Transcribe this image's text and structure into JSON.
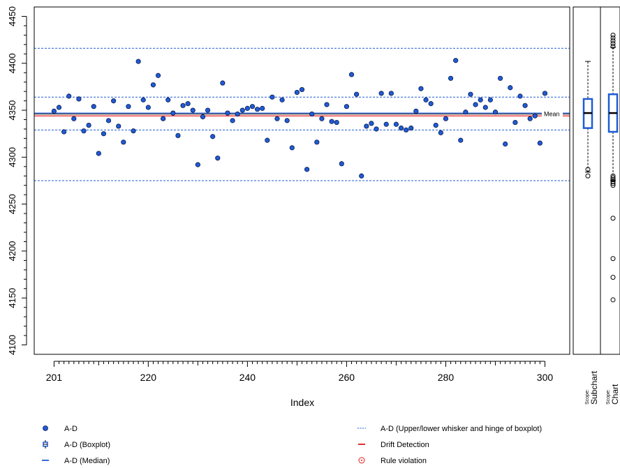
{
  "chart_data": {
    "type": "scatter",
    "xlabel": "Index",
    "ylabel": "",
    "xlim": [
      197,
      305
    ],
    "ylim": [
      4090,
      4460
    ],
    "x_ticks": [
      "201",
      "220",
      "240",
      "260",
      "280",
      "300"
    ],
    "y_ticks": [
      "4100",
      "4150",
      "4200",
      "4250",
      "4300",
      "4350",
      "4400",
      "4450"
    ],
    "series": [
      {
        "name": "A-D",
        "color": "#1f5bd6",
        "x": [
          201,
          202,
          203,
          204,
          205,
          206,
          207,
          208,
          209,
          210,
          211,
          212,
          213,
          214,
          215,
          216,
          217,
          218,
          219,
          220,
          221,
          222,
          223,
          224,
          225,
          226,
          227,
          228,
          229,
          230,
          231,
          232,
          233,
          234,
          235,
          236,
          237,
          238,
          239,
          240,
          241,
          242,
          243,
          244,
          245,
          246,
          247,
          248,
          249,
          250,
          251,
          252,
          253,
          254,
          255,
          256,
          257,
          258,
          259,
          260,
          261,
          262,
          263,
          264,
          265,
          266,
          267,
          268,
          269,
          270,
          271,
          272,
          273,
          274,
          275,
          276,
          277,
          278,
          279,
          280,
          281,
          282,
          283,
          284,
          285,
          286,
          287,
          288,
          289,
          290,
          291,
          292,
          293,
          294,
          295,
          296,
          297,
          298,
          299,
          300
        ],
        "y": [
          4349,
          4353,
          4327,
          4365,
          4341,
          4362,
          4328,
          4334,
          4354,
          4304,
          4325,
          4339,
          4360,
          4333,
          4316,
          4354,
          4328,
          4402,
          4361,
          4353,
          4377,
          4387,
          4341,
          4361,
          4347,
          4323,
          4355,
          4357,
          4350,
          4292,
          4343,
          4350,
          4322,
          4299,
          4379,
          4347,
          4339,
          4346,
          4350,
          4352,
          4354,
          4351,
          4352,
          4318,
          4364,
          4341,
          4361,
          4339,
          4310,
          4369,
          4372,
          4287,
          4346,
          4316,
          4341,
          4356,
          4338,
          4337,
          4293,
          4354,
          4388,
          4367,
          4280,
          4333,
          4336,
          4330,
          4368,
          4335,
          4368,
          4335,
          4331,
          4329,
          4331,
          4349,
          4373,
          4361,
          4357,
          4334,
          4326,
          4341,
          4384,
          4403,
          4318,
          4348,
          4367,
          4356,
          4361,
          4353,
          4361,
          4348,
          4384,
          4314,
          4374,
          4337,
          4365,
          4355,
          4341,
          4344,
          4315,
          4368
        ]
      }
    ],
    "mean": 4346,
    "mean_label": "Mean",
    "drift_line": 4344,
    "median": 4347,
    "whisker_hinge_lines": [
      4275,
      4329,
      4364,
      4416
    ],
    "subchart_box": {
      "whisker_low": 4284,
      "q1": 4331,
      "median": 4347,
      "q3": 4362,
      "whisker_high": 4402,
      "outliers": [
        4280,
        4287
      ]
    },
    "chart_box": {
      "whisker_low": 4275,
      "q1": 4327,
      "median": 4347,
      "q3": 4367,
      "whisker_high": 4417,
      "outliers": [
        4280,
        4278,
        4276,
        4274,
        4272,
        4270,
        4235,
        4192,
        4172,
        4148,
        4430,
        4427,
        4424,
        4421,
        4418
      ]
    },
    "panel_labels": [
      {
        "scope": "Scope:",
        "name": "Subchart"
      },
      {
        "scope": "Scope:",
        "name": "Chart"
      }
    ],
    "legend": [
      {
        "label": "A-D",
        "symbol": "dot",
        "color": "#1f5bd6"
      },
      {
        "label": "A-D (Boxplot)",
        "symbol": "box",
        "color": "#1f5bd6"
      },
      {
        "label": "A-D (Median)",
        "symbol": "line",
        "color": "#1f5bd6"
      },
      {
        "label": "A-D (Upper/lower whisker and hinge of boxplot)",
        "symbol": "dotted",
        "color": "#1f5bd6"
      },
      {
        "label": "Drift Detection",
        "symbol": "line",
        "color": "#e01818"
      },
      {
        "label": "Rule violation",
        "symbol": "ring",
        "color": "#e01818"
      }
    ],
    "grid": false
  }
}
